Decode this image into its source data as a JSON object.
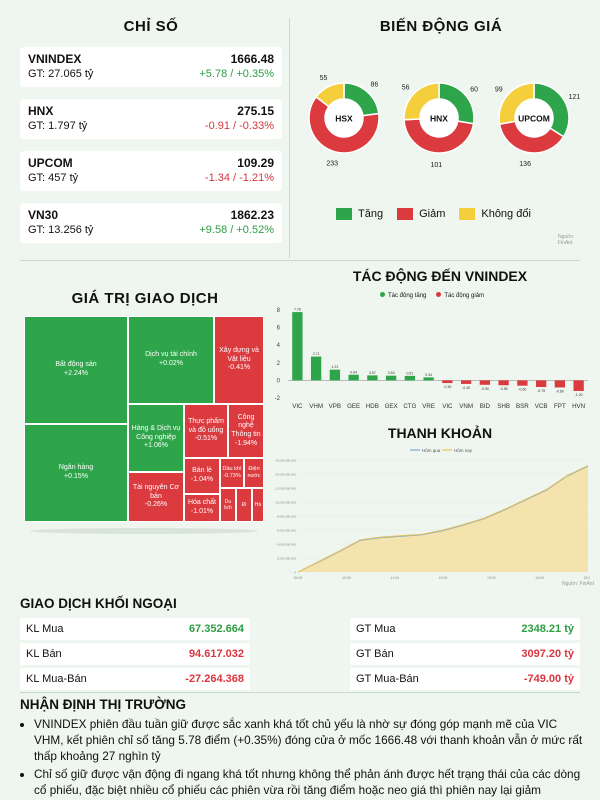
{
  "index_section": {
    "title": "CHỈ SỐ",
    "items": [
      {
        "name": "VNINDEX",
        "gt": "GT: 27.065 tỷ",
        "value": "1666.48",
        "change": "+5.78 / +0.35%",
        "dir": "up"
      },
      {
        "name": "HNX",
        "gt": "GT: 1.797 tỷ",
        "value": "275.15",
        "change": "-0.91 / -0.33%",
        "dir": "down"
      },
      {
        "name": "UPCOM",
        "gt": "GT: 457 tỷ",
        "value": "109.29",
        "change": "-1.34 / -1.21%",
        "dir": "down"
      },
      {
        "name": "VN30",
        "gt": "GT: 13.256 tỷ",
        "value": "1862.23",
        "change": "+9.58 / +0.52%",
        "dir": "up"
      }
    ]
  },
  "price_section": {
    "title": "BIẾN ĐỘNG GIÁ",
    "legend": {
      "up": "Tăng",
      "down": "Giảm",
      "flat": "Không đổi"
    },
    "source": "Nguồn: FinAnt",
    "colors": {
      "up": "#2ea54a",
      "down": "#db3a3f",
      "flat": "#f5cf3b"
    },
    "donuts": [
      {
        "label": "HSX",
        "up": 86,
        "down": 233,
        "flat": 55
      },
      {
        "label": "HNX",
        "up": 60,
        "down": 101,
        "flat": 56
      },
      {
        "label": "UPCOM",
        "up": 121,
        "down": 136,
        "flat": 99
      }
    ]
  },
  "trade_value": {
    "title": "GIÁ TRỊ GIAO DỊCH",
    "tiles": [
      {
        "name": "Bất động sản",
        "pct": "+2.24%"
      },
      {
        "name": "Ngân hàng",
        "pct": "+0.15%"
      },
      {
        "name": "Dịch vụ tài chính",
        "pct": "+0.02%"
      },
      {
        "name": "Xây dựng và Vật liệu",
        "pct": "-0.41%"
      },
      {
        "name": "Hàng & Dịch vụ Công nghiệp",
        "pct": "+1.06%"
      },
      {
        "name": "Thực phẩm và đồ uống",
        "pct": "-0.51%"
      },
      {
        "name": "Công nghệ Thông tin",
        "pct": "-1.94%"
      },
      {
        "name": "Tài nguyên Cơ bản",
        "pct": "-0.26%"
      },
      {
        "name": "Bán lẻ",
        "pct": "-1.04%"
      },
      {
        "name": "Dầu khí",
        "pct": "-0.73%"
      },
      {
        "name": "Điện nước",
        "pct": ""
      },
      {
        "name": "Hóa chất",
        "pct": "-1.01%"
      },
      {
        "name": "Du lịch",
        "pct": ""
      },
      {
        "name": "Đi",
        "pct": ""
      },
      {
        "name": "Hà",
        "pct": ""
      }
    ]
  },
  "impact": {
    "title": "TÁC ĐỘNG ĐẾN VNINDEX",
    "legend_up": "Tác động tăng",
    "legend_down": "Tác động giảm",
    "chart_data": {
      "type": "bar",
      "categories": [
        "VIC",
        "VHM",
        "VPB",
        "GEE",
        "HDB",
        "GEX",
        "CTG",
        "VRE",
        "VIC",
        "VNM",
        "BID",
        "SHB",
        "BSR",
        "VCB",
        "FPT",
        "HVN"
      ],
      "values": [
        7.76,
        2.71,
        1.22,
        0.64,
        0.57,
        0.54,
        0.51,
        0.34,
        -0.3,
        -0.4,
        -0.5,
        -0.55,
        -0.6,
        -0.75,
        -0.8,
        -1.2
      ],
      "y_ticks": [
        "8",
        "6",
        "4",
        "2",
        "0",
        "-2"
      ],
      "ylim": [
        -2,
        8
      ]
    }
  },
  "liquidity": {
    "title": "THANH KHOẢN",
    "legend_prev": "Hôm qua",
    "legend_today": "Hôm nay",
    "source": "Nguồn: FinAnt",
    "chart_data": {
      "type": "area",
      "x_ticks": [
        "09:00",
        "10:00",
        "11:00",
        "12:00",
        "13:00",
        "14:00",
        "15:00"
      ],
      "today": [
        0,
        1500,
        3000,
        4600,
        5000,
        5200,
        5400,
        6000,
        6800,
        7700,
        9000,
        10400,
        11800,
        13800,
        15200
      ],
      "yesterday": [
        0,
        1400,
        2900,
        4500,
        4900,
        5100,
        5300,
        5900,
        6700,
        7600,
        8900,
        10300,
        11700,
        13700,
        15100
      ]
    }
  },
  "foreign": {
    "title": "GIAO DỊCH KHỐI NGOẠI",
    "rows": [
      {
        "label": "KL Mua",
        "value": "67.352.664",
        "dir": "up",
        "label2": "GT Mua",
        "value2": "2348.21 tỷ",
        "dir2": "up"
      },
      {
        "label": "KL Bán",
        "value": "94.617.032",
        "dir": "down",
        "label2": "GT Bán",
        "value2": "3097.20 tỷ",
        "dir2": "down"
      },
      {
        "label": "KL Mua-Bán",
        "value": "-27.264.368",
        "dir": "down",
        "label2": "GT Mua-Bán",
        "value2": "-749.00 tỷ",
        "dir2": "down"
      }
    ]
  },
  "assessment": {
    "title": "NHẬN ĐỊNH THỊ TRƯỜNG",
    "points": [
      "VNINDEX phiên đầu tuần giữ được sắc xanh khá tốt chủ yếu là nhờ sự đóng góp mạnh mẽ của VIC VHM, kết phiên chỉ số tăng 5.78 điểm (+0.35%) đóng cửa ở mốc 1666.48 với thanh khoản vẫn ở mức rất thấp khoảng 27 nghìn tỷ",
      "Chỉ số giữ được vận động đi ngang khá tốt nhưng không thể phản ánh được hết trạng thái của các dòng cổ phiếu, đặc biệt nhiều cổ phiếu các phiên vừa rồi tăng điểm hoặc neo giá thì phiên nay lại giảm"
    ]
  }
}
